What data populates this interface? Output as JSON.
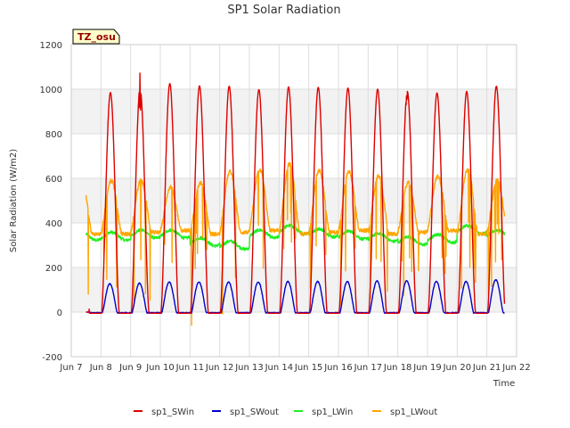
{
  "chart_data": {
    "type": "line",
    "title": "SP1 Solar Radiation",
    "xlabel": "Time",
    "ylabel": "Solar Radiation (W/m2)",
    "ylim": [
      -200,
      1200
    ],
    "yticks": [
      -200,
      0,
      200,
      400,
      600,
      800,
      1000,
      1200
    ],
    "xlim": [
      7,
      22
    ],
    "xticks": [
      {
        "x": 7,
        "label": "Jun 7"
      },
      {
        "x": 8,
        "label": "Jun 8"
      },
      {
        "x": 9,
        "label": "Jun 9"
      },
      {
        "x": 10,
        "label": "Jun 10"
      },
      {
        "x": 11,
        "label": "Jun 11"
      },
      {
        "x": 12,
        "label": "Jun 12"
      },
      {
        "x": 13,
        "label": "Jun 13"
      },
      {
        "x": 14,
        "label": "Jun 14"
      },
      {
        "x": 15,
        "label": "Jun 15"
      },
      {
        "x": 16,
        "label": "Jun 16"
      },
      {
        "x": 17,
        "label": "Jun 17"
      },
      {
        "x": 18,
        "label": "Jun 18"
      },
      {
        "x": 19,
        "label": "Jun 19"
      },
      {
        "x": 20,
        "label": "Jun 20"
      },
      {
        "x": 21,
        "label": "Jun 21"
      },
      {
        "x": 22,
        "label": "Jun 22"
      }
    ],
    "grid": true,
    "legend_position": "bottom",
    "tag_label": "TZ_osu",
    "series": [
      {
        "name": "sp1_SWin",
        "color": "#dd0000",
        "daily_peaks": [
          990,
          1005,
          1030,
          1020,
          1018,
          1003,
          1015,
          1013,
          1010,
          1005,
          995,
          988,
          995,
          1018
        ],
        "night_value": 0
      },
      {
        "name": "sp1_SWout",
        "color": "#0000cc",
        "daily_peaks": [
          130,
          133,
          138,
          138,
          138,
          138,
          140,
          140,
          140,
          143,
          143,
          140,
          140,
          148
        ],
        "night_value": 0
      },
      {
        "name": "sp1_LWin",
        "color": "#22ee22",
        "daily_levels": [
          340,
          350,
          350,
          315,
          300,
          350,
          370,
          355,
          345,
          335,
          320,
          330,
          370,
          350
        ],
        "range": [
          280,
          390
        ]
      },
      {
        "name": "sp1_LWout",
        "color": "#ffa500",
        "daily_peaks": [
          590,
          590,
          560,
          580,
          630,
          640,
          665,
          635,
          630,
          610,
          580,
          610,
          640,
          590
        ],
        "night_level": 350,
        "range": [
          -30,
          665
        ]
      }
    ]
  }
}
